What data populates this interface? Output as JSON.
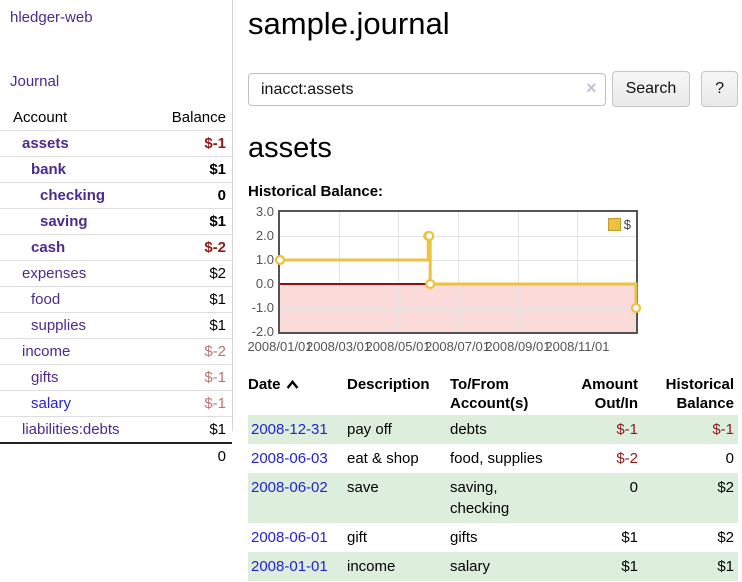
{
  "app": {
    "brand": "hledger-web"
  },
  "colors": {
    "link_purple": "#4e2a8e",
    "link_blue": "#2323d2",
    "negative_dark": "#8f1a1a",
    "negative_light": "#bd7373",
    "row_stripe_green": "#ddeedd",
    "series_gold": "#edc240",
    "chart_negative_fill": "#fbdada",
    "chart_zero_line": "#8b1212"
  },
  "sidebar": {
    "nav": {
      "journal_label": "Journal"
    },
    "accounts_table": {
      "headers": {
        "account": "Account",
        "balance": "Balance"
      },
      "rows": [
        {
          "name": "assets",
          "balance": "$-1",
          "depth": 1,
          "bold": true,
          "neg": "dark"
        },
        {
          "name": "bank",
          "balance": "$1",
          "depth": 2,
          "bold": true
        },
        {
          "name": "checking",
          "balance": "0",
          "depth": 3,
          "bold": true
        },
        {
          "name": "saving",
          "balance": "$1",
          "depth": 3,
          "bold": true
        },
        {
          "name": "cash",
          "balance": "$-2",
          "depth": 2,
          "bold": true,
          "neg": "dark"
        },
        {
          "name": "expenses",
          "balance": "$2",
          "depth": 1
        },
        {
          "name": "food",
          "balance": "$1",
          "depth": 2
        },
        {
          "name": "supplies",
          "balance": "$1",
          "depth": 2
        },
        {
          "name": "income",
          "balance": "$-2",
          "depth": 1,
          "neg": "light"
        },
        {
          "name": "gifts",
          "balance": "$-1",
          "depth": 2,
          "neg": "light"
        },
        {
          "name": "salary",
          "balance": "$-1",
          "depth": 2,
          "neg": "light",
          "link": "blue"
        },
        {
          "name": "liabilities:debts",
          "balance": "$1",
          "depth": 1
        }
      ],
      "total": "0"
    }
  },
  "main": {
    "title": "sample.journal",
    "search": {
      "value": "inacct:assets",
      "clear_icon": "×",
      "search_button_label": "Search",
      "help_button_label": "?"
    },
    "section_title": "assets",
    "chart_heading": "Historical Balance:"
  },
  "chart_data": {
    "type": "line",
    "step": true,
    "title": "Historical Balance:",
    "legend": [
      {
        "label": "$",
        "color": "#edc240"
      }
    ],
    "legend_position": "top-right",
    "points": [
      {
        "x": "2008-01-01",
        "y": 1
      },
      {
        "x": "2008-06-01",
        "y": 2
      },
      {
        "x": "2008-06-02",
        "y": 2
      },
      {
        "x": "2008-06-03",
        "y": 0
      },
      {
        "x": "2008-12-31",
        "y": -1
      }
    ],
    "x_range": [
      "2008-01-01",
      "2008-12-31"
    ],
    "ylim": [
      -2,
      3
    ],
    "y_ticks": [
      {
        "v": 3,
        "label": "3.0"
      },
      {
        "v": 2,
        "label": "2.0"
      },
      {
        "v": 1,
        "label": "1.0"
      },
      {
        "v": 0,
        "label": "0.0"
      },
      {
        "v": -1,
        "label": "-1.0"
      },
      {
        "v": -2,
        "label": "-2.0"
      }
    ],
    "x_ticks": [
      {
        "t": "2008-01-01",
        "label": "2008/01/01"
      },
      {
        "t": "2008-03-01",
        "label": "2008/03/01"
      },
      {
        "t": "2008-05-01",
        "label": "2008/05/01"
      },
      {
        "t": "2008-07-01",
        "label": "2008/07/01"
      },
      {
        "t": "2008-09-01",
        "label": "2008/09/01"
      },
      {
        "t": "2008-11-01",
        "label": "2008/11/01"
      }
    ],
    "grid": true,
    "negative_region_fill": true
  },
  "register": {
    "headers": [
      {
        "line1": "Date",
        "line2": "",
        "sort_icon": "caret-up-icon"
      },
      {
        "line1": "Description",
        "line2": ""
      },
      {
        "line1": "To/From",
        "line2": "Account(s)"
      },
      {
        "line1": "Amount",
        "line2": "Out/In"
      },
      {
        "line1": "Historical",
        "line2": "Balance"
      }
    ],
    "rows": [
      {
        "date": "2008-12-31",
        "description": "pay off",
        "accounts": "debts",
        "amount": "$-1",
        "balance": "$-1",
        "amount_neg": true,
        "balance_neg": true
      },
      {
        "date": "2008-06-03",
        "description": "eat & shop",
        "accounts": "food, supplies",
        "amount": "$-2",
        "balance": "0",
        "amount_neg": true
      },
      {
        "date": "2008-06-02",
        "description": "save",
        "accounts": "saving, checking",
        "amount": "0",
        "balance": "$2"
      },
      {
        "date": "2008-06-01",
        "description": "gift",
        "accounts": "gifts",
        "amount": "$1",
        "balance": "$2"
      },
      {
        "date": "2008-01-01",
        "description": "income",
        "accounts": "salary",
        "amount": "$1",
        "balance": "$1"
      }
    ]
  }
}
